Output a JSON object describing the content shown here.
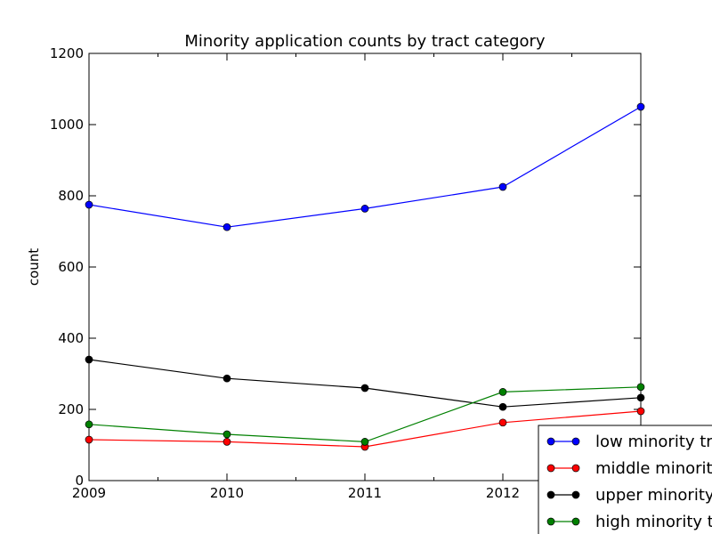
{
  "chart_data": {
    "type": "line",
    "title": "Minority application counts by tract category",
    "xlabel": "",
    "ylabel": "count",
    "x": [
      2009,
      2010,
      2011,
      2012,
      2013
    ],
    "x_tick_labels": [
      "2009",
      "2010",
      "2011",
      "2012",
      ""
    ],
    "xlim": [
      2009,
      2013
    ],
    "ylim": [
      0,
      1200
    ],
    "y_ticks": [
      0,
      200,
      400,
      600,
      800,
      1000,
      1200
    ],
    "y_tick_labels": [
      "0",
      "200",
      "400",
      "600",
      "800",
      "1000",
      "1200"
    ],
    "grid": false,
    "legend_position": "lower-right",
    "series": [
      {
        "name": "low minority tracts",
        "color": "#0000ff",
        "values": [
          775,
          712,
          764,
          825,
          1050
        ]
      },
      {
        "name": "middle minority tracts",
        "color": "#ff0000",
        "values": [
          115,
          109,
          95,
          163,
          195
        ]
      },
      {
        "name": "upper minority tracts",
        "color": "#000000",
        "values": [
          340,
          287,
          260,
          207,
          233
        ]
      },
      {
        "name": "high minority tracts",
        "color": "#008000",
        "values": [
          158,
          130,
          109,
          249,
          263
        ]
      }
    ]
  }
}
